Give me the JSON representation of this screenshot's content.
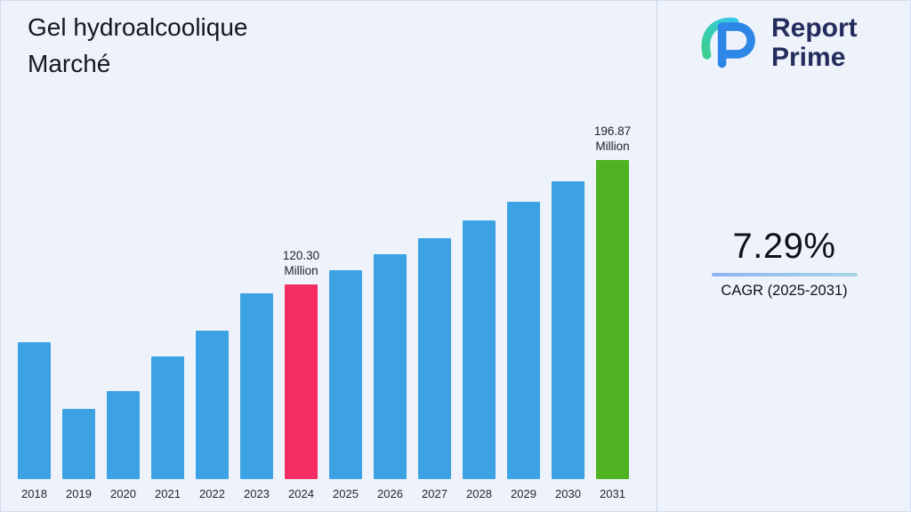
{
  "header": {
    "title_line1": "Gel hydroalcoolique",
    "title_line2": "Marché"
  },
  "logo": {
    "text_line1": "Report",
    "text_line2": "Prime",
    "icon": "report-prime-monogram",
    "colors": {
      "blue": "#2e86e6",
      "green": "#3ecf8e",
      "navy": "#232c5c"
    }
  },
  "stats": {
    "cagr_value": "7.29%",
    "cagr_label": "CAGR (2025-2031)"
  },
  "chart_data": {
    "type": "bar",
    "title": "Gel hydroalcoolique Marché",
    "unit": "Million",
    "xlabel": "",
    "ylabel": "",
    "ylim": [
      0,
      210
    ],
    "grid": false,
    "legend": "none",
    "categories": [
      "2018",
      "2019",
      "2020",
      "2021",
      "2022",
      "2023",
      "2024",
      "2025",
      "2026",
      "2027",
      "2028",
      "2029",
      "2030",
      "2031"
    ],
    "values": [
      84.2,
      43.5,
      54.1,
      75.8,
      91.7,
      114.5,
      120.3,
      129.07,
      138.48,
      148.57,
      159.41,
      171.03,
      183.5,
      196.87
    ],
    "colors": [
      "#3DA2E3",
      "#3DA2E3",
      "#3DA2E3",
      "#3DA2E3",
      "#3DA2E3",
      "#3DA2E3",
      "#F62D63",
      "#3DA2E3",
      "#3DA2E3",
      "#3DA2E3",
      "#3DA2E3",
      "#3DA2E3",
      "#3DA2E3",
      "#4FB321"
    ],
    "annotations": [
      {
        "category": "2024",
        "label": "120.30\nMillion"
      },
      {
        "category": "2031",
        "label": "196.87\nMillion"
      }
    ]
  }
}
